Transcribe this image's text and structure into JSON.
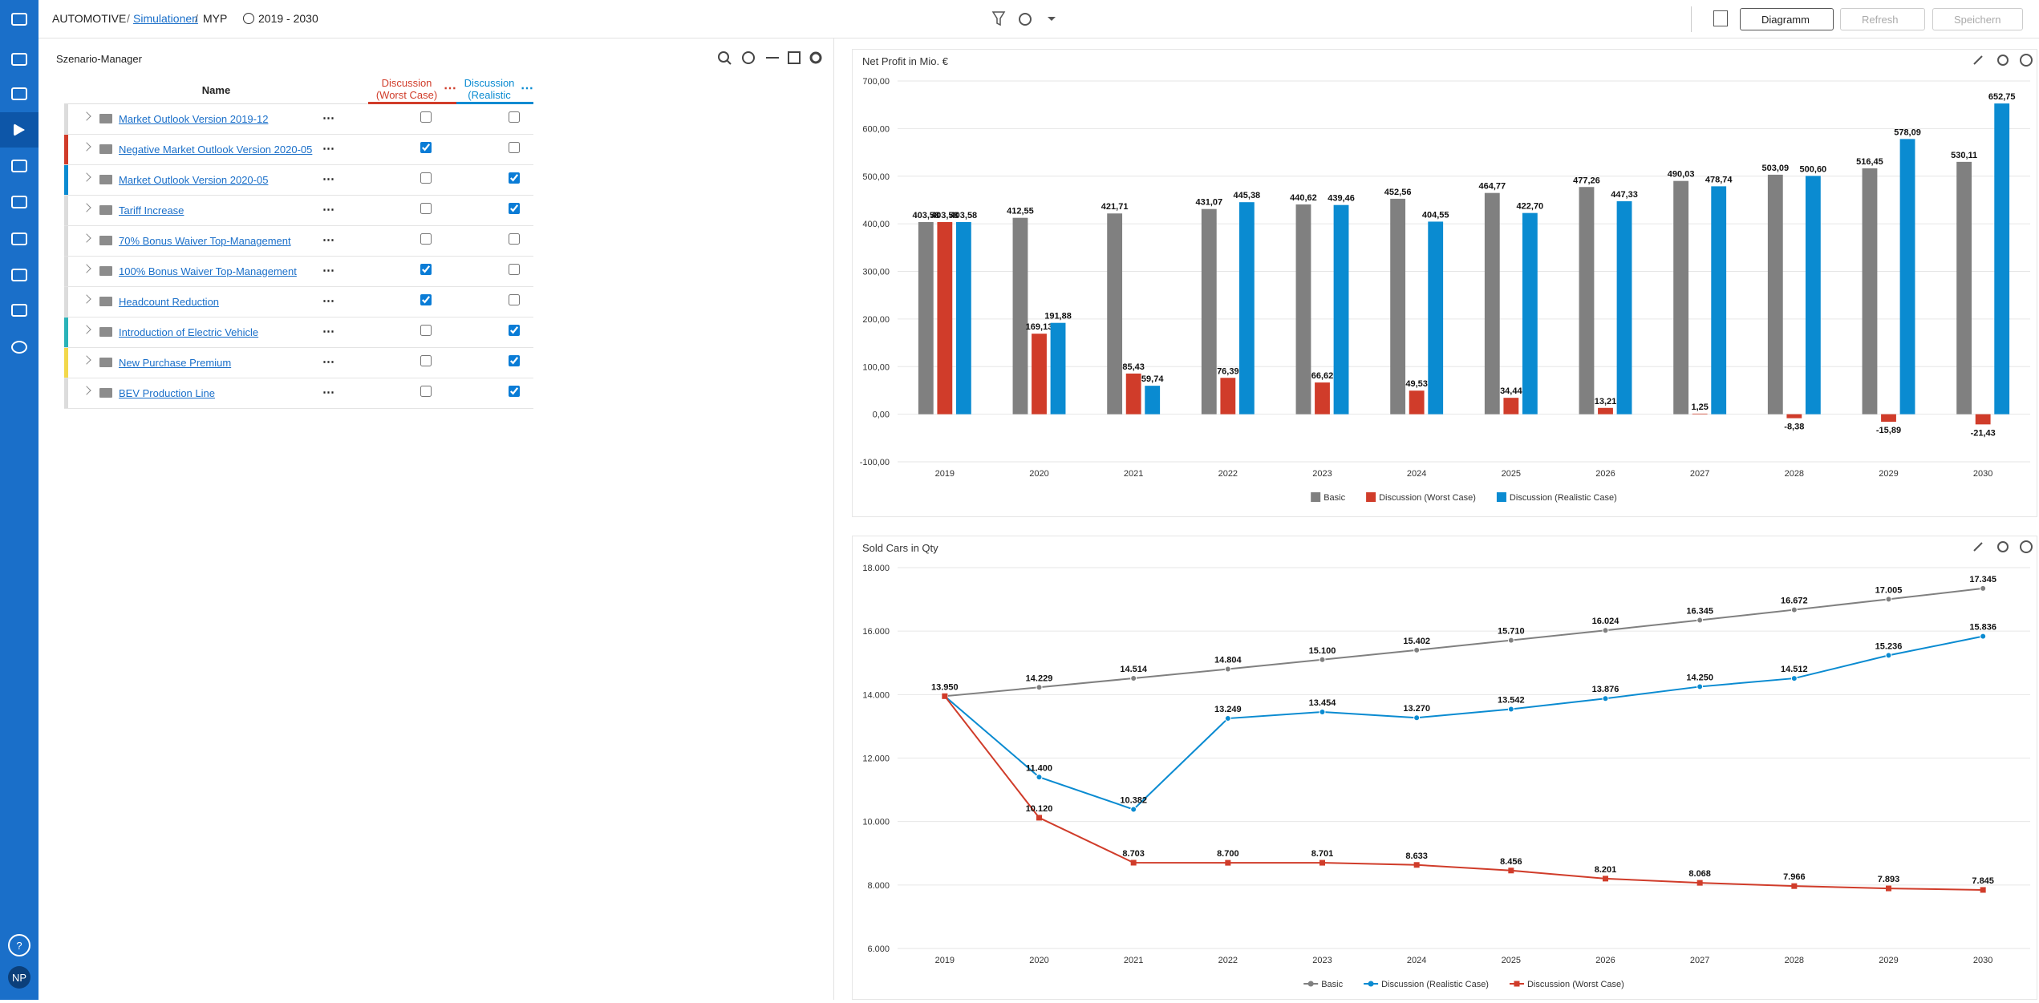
{
  "header": {
    "breadcrumb": [
      "AUTOMOTIVE",
      "Simulationen",
      "MYP"
    ],
    "separator": "/",
    "period": "2019 - 2030",
    "buttons": [
      "Diagramm",
      "Refresh",
      "Speichern"
    ]
  },
  "sidebar": {
    "help": "?",
    "user": "NP"
  },
  "scenario_manager": {
    "title": "Szenario-Manager",
    "columns": [
      {
        "label": "Name"
      },
      {
        "label": "Discussion (Worst Case)",
        "color": "#d03c2a"
      },
      {
        "label": "Discussion (Realistic",
        "color": "#0a8bd1"
      }
    ],
    "rows": [
      {
        "name": "Market Outlook Version 2019-12",
        "worst_case": false,
        "realistic": false,
        "marker": null
      },
      {
        "name": "Negative Market Outlook Version 2020-05",
        "worst_case": true,
        "realistic": false,
        "marker": "#d03c2a"
      },
      {
        "name": "Market Outlook Version 2020-05",
        "worst_case": false,
        "realistic": true,
        "marker": "#0a8bd1"
      },
      {
        "name": "Tariff Increase",
        "worst_case": false,
        "realistic": true,
        "marker": null
      },
      {
        "name": "70% Bonus Waiver Top-Management",
        "worst_case": false,
        "realistic": false,
        "marker": null
      },
      {
        "name": "100% Bonus Waiver Top-Management",
        "worst_case": true,
        "realistic": false,
        "marker": null
      },
      {
        "name": "Headcount Reduction",
        "worst_case": true,
        "realistic": false,
        "marker": null
      },
      {
        "name": "Introduction of Electric Vehicle",
        "worst_case": false,
        "realistic": true,
        "marker": "#2ab3b8"
      },
      {
        "name": "New Purchase Premium",
        "worst_case": false,
        "realistic": true,
        "marker": "#f2d84b"
      },
      {
        "name": "BEV Production Line",
        "worst_case": false,
        "realistic": true,
        "marker": null
      }
    ]
  },
  "chart_data": [
    {
      "type": "bar",
      "title": "Net Profit in Mio. €",
      "categories": [
        "2019",
        "2020",
        "2021",
        "2022",
        "2023",
        "2024",
        "2025",
        "2026",
        "2027",
        "2028",
        "2029",
        "2030"
      ],
      "series": [
        {
          "name": "Basic",
          "color": "#808080",
          "values": [
            403.58,
            412.55,
            421.71,
            431.07,
            440.62,
            452.56,
            464.77,
            477.26,
            490.03,
            503.09,
            516.45,
            530.11
          ],
          "value_labels": [
            "403,58",
            "412,55",
            "421,71",
            "431,07",
            "440,62",
            "452,56",
            "464,77",
            "477,26",
            "490,03",
            "503,09",
            "516,45",
            "530,11"
          ]
        },
        {
          "name": "Discussion (Worst Case)",
          "color": "#d03c2a",
          "values": [
            403.58,
            169.13,
            85.43,
            76.39,
            66.62,
            49.53,
            34.44,
            13.21,
            1.25,
            -8.38,
            -15.89,
            -21.43
          ],
          "value_labels": [
            "403,58",
            "169,13",
            "85,43",
            "76,39",
            "66,62",
            "49,53",
            "34,44",
            "13,21",
            "1,25",
            "-8,38",
            "-15,89",
            "-21,43"
          ]
        },
        {
          "name": "Discussion (Realistic Case)",
          "color": "#0a8bd1",
          "values": [
            403.58,
            191.88,
            59.74,
            445.38,
            439.46,
            404.55,
            422.7,
            447.33,
            478.74,
            500.6,
            578.09,
            652.75
          ],
          "value_labels": [
            "403,58",
            "191,88",
            "59,74",
            "445,38",
            "439,46",
            "404,55",
            "422,70",
            "447,33",
            "478,74",
            "500,60",
            "578,09",
            "652,75"
          ]
        }
      ],
      "ylim": [
        -100,
        700
      ],
      "yticks": [
        {
          "value": -100,
          "label": "-100,00"
        },
        {
          "value": 0,
          "label": "0,00"
        },
        {
          "value": 100,
          "label": "100,00"
        },
        {
          "value": 200,
          "label": "200,00"
        },
        {
          "value": 300,
          "label": "300,00"
        },
        {
          "value": 400,
          "label": "400,00"
        },
        {
          "value": 500,
          "label": "500,00"
        },
        {
          "value": 600,
          "label": "600,00"
        },
        {
          "value": 700,
          "label": "700,00"
        }
      ],
      "grid": true,
      "legend": "bottom"
    },
    {
      "type": "line",
      "title": "Sold Cars in Qty",
      "categories": [
        "2019",
        "2020",
        "2021",
        "2022",
        "2023",
        "2024",
        "2025",
        "2026",
        "2027",
        "2028",
        "2029",
        "2030"
      ],
      "series": [
        {
          "name": "Basic",
          "color": "#808080",
          "marker": "circle",
          "values": [
            13950,
            14229,
            14514,
            14804,
            15100,
            15402,
            15710,
            16024,
            16345,
            16672,
            17005,
            17345
          ],
          "value_labels": [
            "13.950",
            "14.229",
            "14.514",
            "14.804",
            "15.100",
            "15.402",
            "15.710",
            "16.024",
            "16.345",
            "16.672",
            "17.005",
            "17.345"
          ]
        },
        {
          "name": "Discussion (Realistic Case)",
          "color": "#0a8bd1",
          "marker": "circle",
          "values": [
            13950,
            11400,
            10382,
            13249,
            13454,
            13270,
            13542,
            13876,
            14250,
            14512,
            15236,
            15836
          ],
          "value_labels": [
            null,
            "11.400",
            "10.382",
            "13.249",
            "13.454",
            "13.270",
            "13.542",
            "13.876",
            "14.250",
            "14.512",
            "15.236",
            "15.836"
          ]
        },
        {
          "name": "Discussion (Worst Case)",
          "color": "#d03c2a",
          "marker": "square",
          "values": [
            13950,
            10120,
            8703,
            8700,
            8701,
            8633,
            8456,
            8201,
            8068,
            7966,
            7893,
            7845
          ],
          "value_labels": [
            null,
            "10.120",
            "8.703",
            "8.700",
            "8.701",
            "8.633",
            "8.456",
            "8.201",
            "8.068",
            "7.966",
            "7.893",
            "7.845"
          ]
        }
      ],
      "ylim": [
        6000,
        18000
      ],
      "yticks": [
        {
          "value": 6000,
          "label": "6.000"
        },
        {
          "value": 8000,
          "label": "8.000"
        },
        {
          "value": 10000,
          "label": "10.000"
        },
        {
          "value": 12000,
          "label": "12.000"
        },
        {
          "value": 14000,
          "label": "14.000"
        },
        {
          "value": 16000,
          "label": "16.000"
        },
        {
          "value": 18000,
          "label": "18.000"
        }
      ],
      "grid": true,
      "legend": "bottom"
    }
  ]
}
